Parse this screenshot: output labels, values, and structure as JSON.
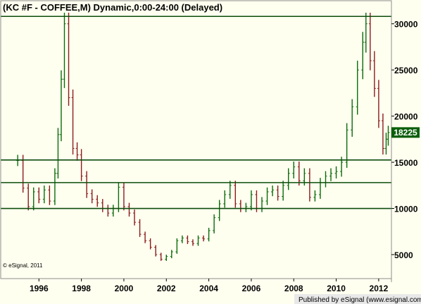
{
  "title": "(KC #F - COFFEE,M) Dynamic,0:00-24:00 (Delayed)",
  "watermark": "© eSignal, 2011",
  "footer": "Published by eSignal (www.esignal.com)",
  "last_price_badge": "18225",
  "colors": {
    "background": "#fffff0",
    "frame": "#8c8c8c",
    "up_bar": "#0a6b0a",
    "down_bar": "#8a1c1c",
    "hline": "#0b4d0b",
    "badge_bg": "#0b5e0b",
    "badge_text": "#ffffff",
    "footer_bg": "#e8e8e8"
  },
  "chart_data": {
    "type": "ohlc",
    "title": "(KC #F - COFFEE,M) Dynamic,0:00-24:00 (Delayed)",
    "x_tick_labels": [
      "1996",
      "1998",
      "2000",
      "2002",
      "2004",
      "2006",
      "2008",
      "2010",
      "2012"
    ],
    "x_ticks": [
      1996,
      1998,
      2000,
      2002,
      2004,
      2006,
      2008,
      2010,
      2012
    ],
    "y_tick_labels": [
      "5000",
      "10000",
      "15000",
      "20000",
      "25000",
      "30000"
    ],
    "y_ticks": [
      5000,
      10000,
      15000,
      20000,
      25000,
      30000
    ],
    "xlim": [
      1994.2,
      2012.6
    ],
    "ylim": [
      2400,
      32500
    ],
    "horizontal_lines": [
      30800,
      15250,
      12800,
      10000
    ],
    "last_price": 18225,
    "series": [
      {
        "values": [
          {
            "x": 1995.0,
            "y": 15200
          },
          {
            "x": 1995.25,
            "y": 12200
          },
          {
            "x": 1995.5,
            "y": 10200
          },
          {
            "x": 1995.75,
            "y": 11800
          },
          {
            "x": 1996.0,
            "y": 11000
          },
          {
            "x": 1996.25,
            "y": 12000
          },
          {
            "x": 1996.5,
            "y": 10800
          },
          {
            "x": 1996.75,
            "y": 13800
          },
          {
            "x": 1996.9,
            "y": 18000
          },
          {
            "x": 1997.05,
            "y": 24000
          },
          {
            "x": 1997.2,
            "y": 30000
          },
          {
            "x": 1997.4,
            "y": 22000
          },
          {
            "x": 1997.6,
            "y": 16500
          },
          {
            "x": 1997.8,
            "y": 15800
          },
          {
            "x": 1998.0,
            "y": 13500
          },
          {
            "x": 1998.25,
            "y": 11600
          },
          {
            "x": 1998.5,
            "y": 11000
          },
          {
            "x": 1998.75,
            "y": 10600
          },
          {
            "x": 1999.0,
            "y": 10000
          },
          {
            "x": 1999.25,
            "y": 9500
          },
          {
            "x": 1999.5,
            "y": 10000
          },
          {
            "x": 1999.75,
            "y": 12300
          },
          {
            "x": 2000.0,
            "y": 10200
          },
          {
            "x": 2000.25,
            "y": 9500
          },
          {
            "x": 2000.5,
            "y": 8500
          },
          {
            "x": 2000.75,
            "y": 7200
          },
          {
            "x": 2001.0,
            "y": 6500
          },
          {
            "x": 2001.25,
            "y": 5800
          },
          {
            "x": 2001.5,
            "y": 5000
          },
          {
            "x": 2001.75,
            "y": 4500
          },
          {
            "x": 2002.0,
            "y": 4800
          },
          {
            "x": 2002.25,
            "y": 5300
          },
          {
            "x": 2002.5,
            "y": 6500
          },
          {
            "x": 2002.75,
            "y": 6800
          },
          {
            "x": 2003.0,
            "y": 6400
          },
          {
            "x": 2003.25,
            "y": 6200
          },
          {
            "x": 2003.5,
            "y": 6800
          },
          {
            "x": 2003.75,
            "y": 6700
          },
          {
            "x": 2004.0,
            "y": 7600
          },
          {
            "x": 2004.25,
            "y": 9000
          },
          {
            "x": 2004.5,
            "y": 10500
          },
          {
            "x": 2004.75,
            "y": 11500
          },
          {
            "x": 2005.0,
            "y": 12500
          },
          {
            "x": 2005.25,
            "y": 10500
          },
          {
            "x": 2005.5,
            "y": 10000
          },
          {
            "x": 2005.75,
            "y": 10200
          },
          {
            "x": 2006.0,
            "y": 11500
          },
          {
            "x": 2006.25,
            "y": 10000
          },
          {
            "x": 2006.5,
            "y": 10800
          },
          {
            "x": 2006.75,
            "y": 11800
          },
          {
            "x": 2007.0,
            "y": 12000
          },
          {
            "x": 2007.25,
            "y": 11300
          },
          {
            "x": 2007.5,
            "y": 12500
          },
          {
            "x": 2007.75,
            "y": 13800
          },
          {
            "x": 2008.0,
            "y": 14500
          },
          {
            "x": 2008.25,
            "y": 13000
          },
          {
            "x": 2008.5,
            "y": 13800
          },
          {
            "x": 2008.75,
            "y": 11200
          },
          {
            "x": 2009.0,
            "y": 11500
          },
          {
            "x": 2009.25,
            "y": 12800
          },
          {
            "x": 2009.5,
            "y": 13500
          },
          {
            "x": 2009.75,
            "y": 13800
          },
          {
            "x": 2010.0,
            "y": 14000
          },
          {
            "x": 2010.25,
            "y": 15000
          },
          {
            "x": 2010.5,
            "y": 18500
          },
          {
            "x": 2010.75,
            "y": 21000
          },
          {
            "x": 2011.0,
            "y": 25000
          },
          {
            "x": 2011.25,
            "y": 28000
          },
          {
            "x": 2011.4,
            "y": 30000
          },
          {
            "x": 2011.6,
            "y": 26000
          },
          {
            "x": 2011.8,
            "y": 23000
          },
          {
            "x": 2012.0,
            "y": 19500
          },
          {
            "x": 2012.2,
            "y": 16500
          },
          {
            "x": 2012.35,
            "y": 17500
          },
          {
            "x": 2012.45,
            "y": 18225
          }
        ]
      }
    ],
    "grid": false
  }
}
